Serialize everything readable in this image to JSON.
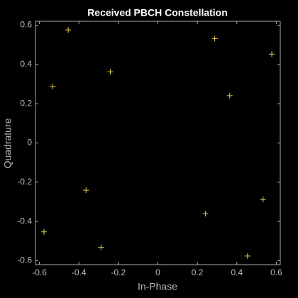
{
  "chart_data": {
    "type": "scatter",
    "title": "Received PBCH Constellation",
    "xlabel": "In-Phase",
    "ylabel": "Quadrature",
    "marker": "+",
    "color": "#e6cf4c",
    "x": [
      -0.454,
      0.288,
      0.577,
      -0.241,
      -0.533,
      0.364,
      -0.364,
      0.241,
      0.533,
      -0.577,
      -0.288,
      0.454
    ],
    "y": [
      0.576,
      0.532,
      0.453,
      0.363,
      0.288,
      0.241,
      -0.241,
      -0.36,
      -0.288,
      -0.453,
      -0.532,
      -0.576
    ],
    "xlim": [
      -0.62,
      0.62
    ],
    "ylim": [
      -0.62,
      0.62
    ],
    "xticks": [
      -0.6,
      -0.4,
      -0.2,
      0,
      0.2,
      0.4,
      0.6
    ],
    "yticks": [
      -0.6,
      -0.4,
      -0.2,
      0,
      0.2,
      0.4,
      0.6
    ],
    "grid": false
  }
}
